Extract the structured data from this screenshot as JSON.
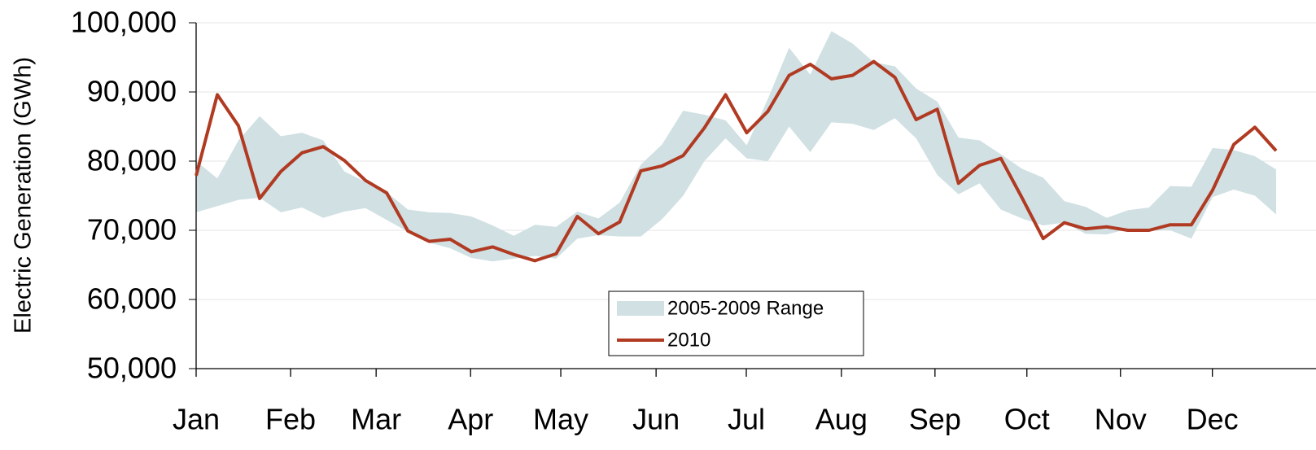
{
  "chart_data": {
    "type": "line",
    "ylabel": "Electric Generation (GWh)",
    "x": [
      1,
      2,
      3,
      4,
      5,
      6,
      7,
      8,
      9,
      10,
      11,
      12,
      13,
      14,
      15,
      16,
      17,
      18,
      19,
      20,
      21,
      22,
      23,
      24,
      25,
      26,
      27,
      28,
      29,
      30,
      31,
      32,
      33,
      34,
      35,
      36,
      37,
      38,
      39,
      40,
      41,
      42,
      43,
      44,
      45,
      46,
      47,
      48,
      49,
      50,
      51,
      52
    ],
    "xlim": [
      1,
      52
    ],
    "xticks": [
      {
        "value": 1,
        "label": "Jan"
      },
      {
        "value": 5.46,
        "label": "Feb"
      },
      {
        "value": 9.5,
        "label": "Mar"
      },
      {
        "value": 13.96,
        "label": "Apr"
      },
      {
        "value": 18.22,
        "label": "May"
      },
      {
        "value": 22.72,
        "label": "Jun"
      },
      {
        "value": 26.98,
        "label": "Jul"
      },
      {
        "value": 31.47,
        "label": "Aug"
      },
      {
        "value": 35.89,
        "label": "Sep"
      },
      {
        "value": 40.23,
        "label": "Oct"
      },
      {
        "value": 44.65,
        "label": "Nov"
      },
      {
        "value": 48.99,
        "label": "Dec"
      }
    ],
    "ylim": [
      50000,
      100000
    ],
    "yticks": [
      {
        "value": 50000,
        "label": "50,000"
      },
      {
        "value": 60000,
        "label": "60,000"
      },
      {
        "value": 70000,
        "label": "70,000"
      },
      {
        "value": 80000,
        "label": "80,000"
      },
      {
        "value": 90000,
        "label": "90,000"
      },
      {
        "value": 100000,
        "label": "100,000"
      }
    ],
    "grid": true,
    "legend": "bottom-center",
    "series": [
      {
        "name": "2005-2009 Range",
        "type": "band",
        "color": "#d0e0e3",
        "upper": [
          80000,
          77500,
          83000,
          86500,
          83600,
          84100,
          83000,
          78500,
          77000,
          75500,
          73000,
          72600,
          72500,
          72000,
          70700,
          69200,
          70800,
          70500,
          72700,
          71700,
          74000,
          79500,
          82400,
          87300,
          86700,
          85900,
          82300,
          89000,
          96400,
          92500,
          98800,
          97000,
          94300,
          93700,
          90500,
          88600,
          83400,
          83000,
          81000,
          78900,
          77600,
          74200,
          73400,
          71800,
          72900,
          73300,
          76400,
          76300,
          81900,
          81600,
          80700,
          78800
        ],
        "lower": [
          72600,
          73500,
          74400,
          74700,
          72600,
          73300,
          71800,
          72700,
          73200,
          71500,
          69800,
          68200,
          67400,
          66000,
          65500,
          65900,
          66300,
          65900,
          68800,
          69300,
          69100,
          69100,
          71600,
          75000,
          80000,
          83300,
          80400,
          80000,
          85000,
          81300,
          85600,
          85400,
          84500,
          86200,
          83300,
          78000,
          75200,
          76800,
          73000,
          71700,
          70700,
          71100,
          69500,
          69400,
          70200,
          70000,
          70000,
          68800,
          74800,
          75900,
          75000,
          72300
        ]
      },
      {
        "name": "2010",
        "color": "#b03a22",
        "values": [
          77900,
          89600,
          85100,
          74600,
          78500,
          81200,
          82100,
          80100,
          77200,
          75400,
          69900,
          68400,
          68700,
          66900,
          67600,
          66500,
          65600,
          66600,
          72000,
          69500,
          71200,
          78600,
          79300,
          80800,
          84800,
          89600,
          84100,
          87200,
          92400,
          94000,
          91900,
          92400,
          94400,
          92100,
          86000,
          87500,
          76800,
          79400,
          80400,
          74700,
          68800,
          71100,
          70200,
          70500,
          70000,
          70000,
          70800,
          70800,
          75800,
          82400,
          84900,
          81500
        ]
      }
    ]
  }
}
